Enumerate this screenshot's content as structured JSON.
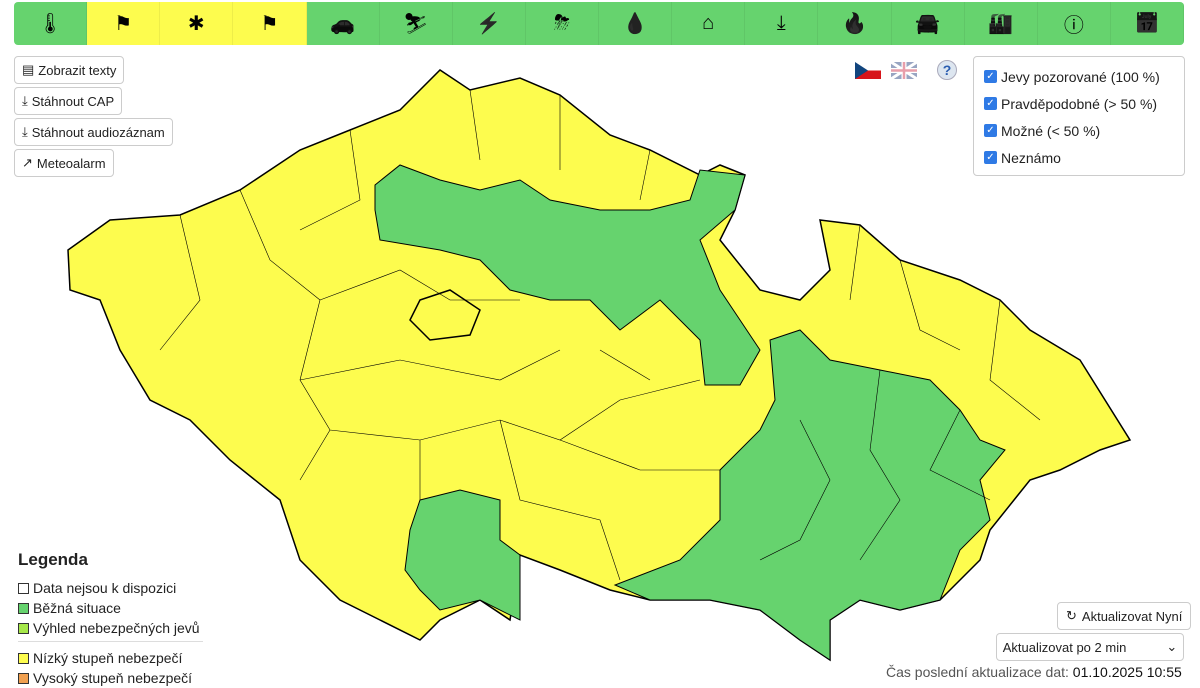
{
  "toolbar": {
    "items": [
      {
        "icon": "thermometer-icon",
        "glyph": "🌡",
        "status": "green"
      },
      {
        "icon": "windsock-icon",
        "glyph": "⚑",
        "status": "yellow"
      },
      {
        "icon": "snowflakes-icon",
        "glyph": "✱",
        "status": "yellow"
      },
      {
        "icon": "windsock-snow-icon",
        "glyph": "⚑",
        "status": "yellow"
      },
      {
        "icon": "slippery-road-icon",
        "glyph": "🚗",
        "status": "green"
      },
      {
        "icon": "slipping-person-icon",
        "glyph": "⛷",
        "status": "green"
      },
      {
        "icon": "icing-powerline-icon",
        "glyph": "⚡",
        "status": "green"
      },
      {
        "icon": "thunderstorm-icon",
        "glyph": "⛈",
        "status": "green"
      },
      {
        "icon": "rain-drops-icon",
        "glyph": "💧",
        "status": "green"
      },
      {
        "icon": "flood-house-icon",
        "glyph": "⌂",
        "status": "green"
      },
      {
        "icon": "flood-level-icon",
        "glyph": "⤓",
        "status": "green"
      },
      {
        "icon": "fire-icon",
        "glyph": "🔥",
        "status": "green"
      },
      {
        "icon": "ozone-car-icon",
        "glyph": "🚘",
        "status": "green"
      },
      {
        "icon": "smog-factory-icon",
        "glyph": "🏭",
        "status": "green"
      },
      {
        "icon": "warning-icon",
        "glyph": "ⓘ",
        "status": "green"
      },
      {
        "icon": "calendar-icon",
        "glyph": "📅",
        "status": "green"
      }
    ],
    "colors": {
      "green": "#66d36e",
      "yellow": "#fdfc4e"
    }
  },
  "buttons": {
    "show_texts": "Zobrazit texty",
    "download_cap": "Stáhnout CAP",
    "download_audio": "Stáhnout audiozáznam",
    "meteoalarm": "Meteoalarm"
  },
  "help": "?",
  "filters": [
    {
      "label": "Jevy pozorované (100 %)",
      "checked": true
    },
    {
      "label": "Pravděpodobné (> 50 %)",
      "checked": true
    },
    {
      "label": "Možné (< 50 %)",
      "checked": true
    },
    {
      "label": "Neznámo",
      "checked": true
    }
  ],
  "legend": {
    "title": "Legenda",
    "items": [
      {
        "label": "Data nejsou k dispozici",
        "color": "#ffffff"
      },
      {
        "label": "Běžná situace",
        "color": "#66d36e"
      },
      {
        "label": "Výhled nebezpečných jevů",
        "color": "#a6e84a"
      },
      {
        "label": "Nízký stupeň nebezpečí",
        "color": "#fdfc4e"
      },
      {
        "label": "Vysoký stupeň nebezpečí",
        "color": "#f0a050"
      }
    ]
  },
  "refresh": {
    "now_label": "Aktualizovat Nyní",
    "interval_selected": "Aktualizovat po 2 min"
  },
  "last_update": {
    "label": "Čas poslední aktualizace dat:",
    "value": "01.10.2025 10:55"
  }
}
